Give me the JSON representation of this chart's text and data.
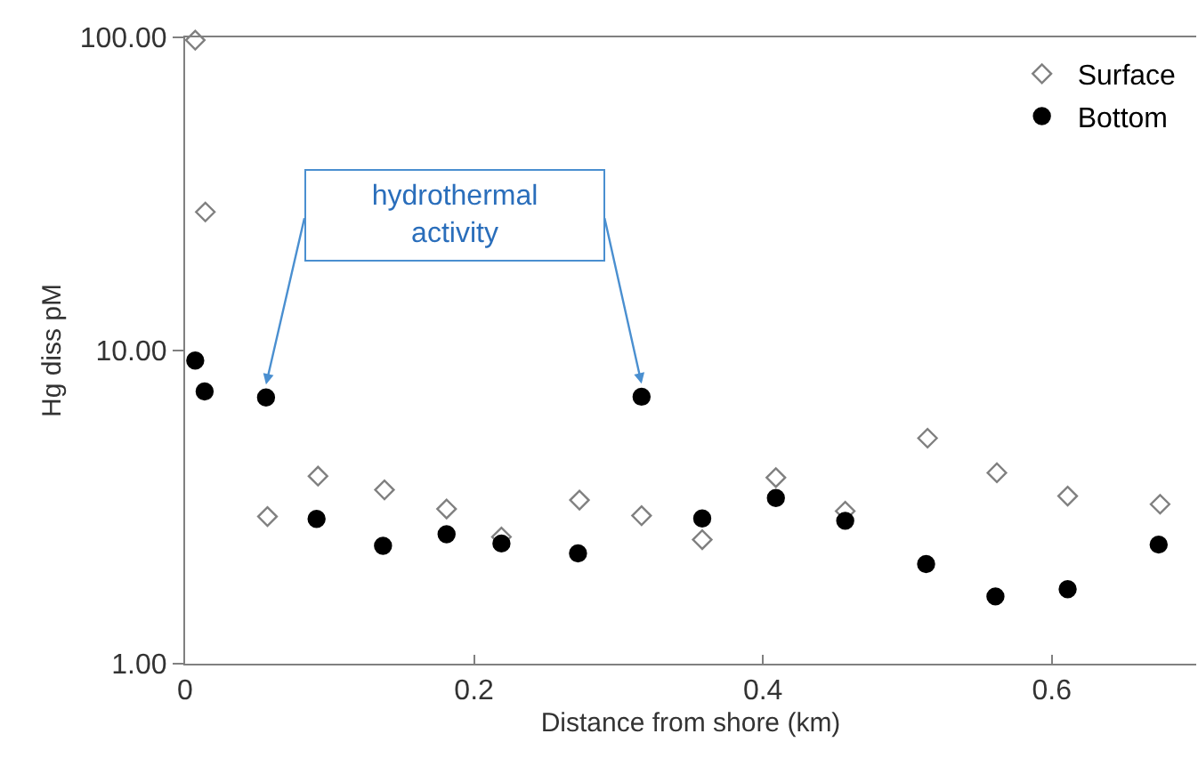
{
  "chart_data": {
    "type": "scatter",
    "xlabel": "Distance from shore (km)",
    "ylabel": "Hg diss pM",
    "xlim": [
      0,
      0.7
    ],
    "xticks": [
      0,
      0.2,
      0.4,
      0.6
    ],
    "ylim": [
      1,
      100
    ],
    "yticks": [
      {
        "value": 1,
        "label": "1.00"
      },
      {
        "value": 10,
        "label": "10.00"
      },
      {
        "value": 100,
        "label": "100.00"
      }
    ],
    "log": "y",
    "legend": "top right",
    "series": [
      {
        "name": "Surface",
        "color": "#808080",
        "marker": "diamond",
        "x": [
          0.007,
          0.014,
          0.057,
          0.092,
          0.138,
          0.181,
          0.219,
          0.273,
          0.316,
          0.358,
          0.409,
          0.457,
          0.514,
          0.562,
          0.611,
          0.675
        ],
        "values": [
          98,
          27.7,
          2.95,
          3.97,
          3.59,
          3.12,
          2.54,
          3.33,
          2.97,
          2.49,
          3.93,
          3.07,
          5.25,
          4.07,
          3.43,
          3.23
        ]
      },
      {
        "name": "Bottom",
        "color": "#000000",
        "marker": "circle",
        "x": [
          0.007,
          0.0135,
          0.056,
          0.091,
          0.137,
          0.181,
          0.219,
          0.272,
          0.316,
          0.358,
          0.409,
          0.457,
          0.513,
          0.561,
          0.611,
          0.674
        ],
        "values": [
          9.29,
          7.4,
          7.08,
          2.9,
          2.38,
          2.59,
          2.42,
          2.25,
          7.12,
          2.91,
          3.38,
          2.86,
          2.08,
          1.64,
          1.73,
          2.4
        ]
      }
    ],
    "annotations": [
      "hydrothermal activity"
    ]
  }
}
